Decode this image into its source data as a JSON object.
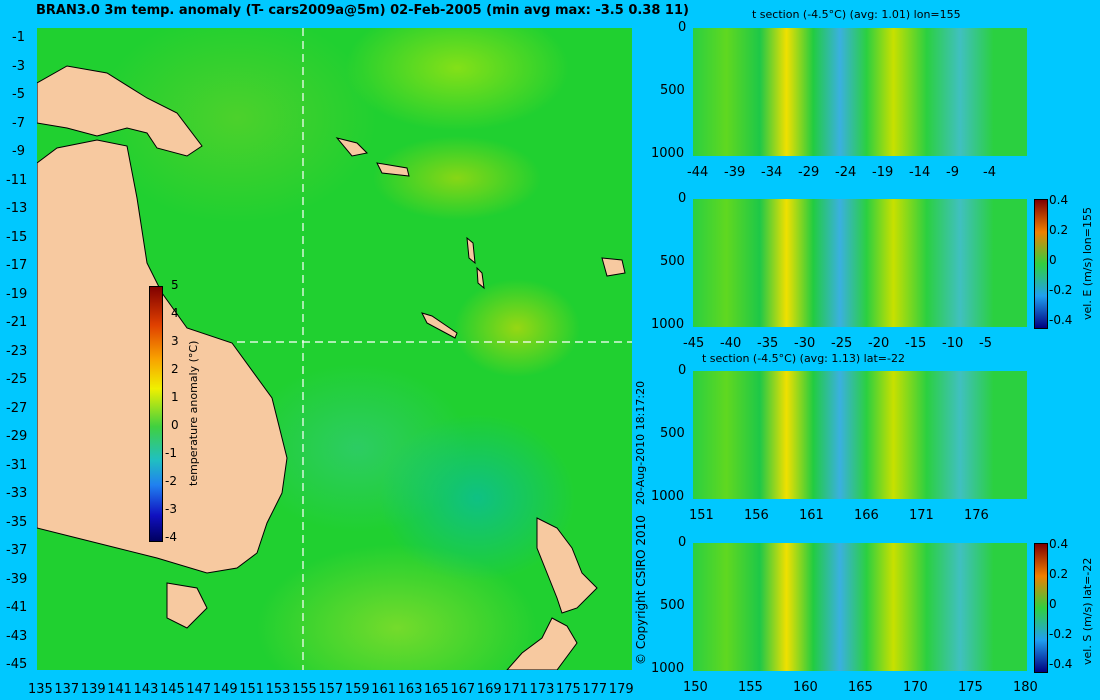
{
  "title": "BRAN3.0 3m temp. anomaly (T- cars2009a@5m) 02-Feb-2005 (min avg max: -3.5 0.38 11)",
  "copyright": "© Copyright CSIRO 2010",
  "timestamp": "20-Aug-2010 18:17:20",
  "chart_data": [
    {
      "type": "heatmap",
      "name": "map",
      "x_ticks": [
        "135",
        "137",
        "139",
        "141",
        "143",
        "145",
        "147",
        "149",
        "151",
        "153",
        "155",
        "157",
        "159",
        "161",
        "163",
        "165",
        "167",
        "169",
        "171",
        "173",
        "175",
        "177",
        "179"
      ],
      "y_ticks": [
        "-1",
        "-3",
        "-5",
        "-7",
        "-9",
        "-11",
        "-13",
        "-15",
        "-17",
        "-19",
        "-21",
        "-23",
        "-25",
        "-27",
        "-29",
        "-31",
        "-33",
        "-35",
        "-37",
        "-39",
        "-41",
        "-43",
        "-45"
      ],
      "xlim": [
        135,
        180
      ],
      "ylim": [
        -45,
        0
      ],
      "section_lon": 155,
      "section_lat": -22,
      "colorbar": {
        "label": "temperature anomaly (°C)",
        "ticks": [
          "5",
          "4",
          "3",
          "2",
          "1",
          "0",
          "-1",
          "-2",
          "-3",
          "-4"
        ],
        "range": [
          -4,
          5
        ]
      }
    },
    {
      "type": "heatmap",
      "name": "t-section-lon155",
      "title": "t section (-4.5°C) (avg: 1.01) lon=155",
      "x_ticks": [
        "-44",
        "-39",
        "-34",
        "-29",
        "-24",
        "-19",
        "-14",
        "-9",
        "-4"
      ],
      "y_ticks": [
        "0",
        "500",
        "1000"
      ],
      "xlim": [
        -45,
        0
      ],
      "ylim": [
        1050,
        0
      ]
    },
    {
      "type": "heatmap",
      "name": "vel-e-lon155",
      "x_ticks": [
        "-45",
        "-40",
        "-35",
        "-30",
        "-25",
        "-20",
        "-15",
        "-10",
        "-5"
      ],
      "y_ticks": [
        "0",
        "500",
        "1000"
      ],
      "xlim": [
        -45,
        0
      ],
      "ylim": [
        1050,
        0
      ],
      "colorbar": {
        "label": "vel. E (m/s) lon=155",
        "ticks": [
          "0.4",
          "0.2",
          "0",
          "-0.2",
          "-0.4"
        ],
        "range": [
          -0.4,
          0.4
        ]
      }
    },
    {
      "type": "heatmap",
      "name": "t-section-lat-22",
      "title": "t section (-4.5°C) (avg: 1.13) lat=-22",
      "x_ticks": [
        "151",
        "156",
        "161",
        "166",
        "171",
        "176"
      ],
      "y_ticks": [
        "0",
        "500",
        "1000"
      ],
      "xlim": [
        150,
        180
      ],
      "ylim": [
        1050,
        0
      ]
    },
    {
      "type": "heatmap",
      "name": "vel-s-lat-22",
      "x_ticks": [
        "150",
        "155",
        "160",
        "165",
        "170",
        "175",
        "180"
      ],
      "y_ticks": [
        "0",
        "500",
        "1000"
      ],
      "xlim": [
        150,
        180
      ],
      "ylim": [
        1050,
        0
      ],
      "colorbar": {
        "label": "vel. S (m/s) lat=-22",
        "ticks": [
          "0.4",
          "0.2",
          "0",
          "-0.2",
          "-0.4"
        ],
        "range": [
          -0.4,
          0.4
        ]
      }
    }
  ]
}
